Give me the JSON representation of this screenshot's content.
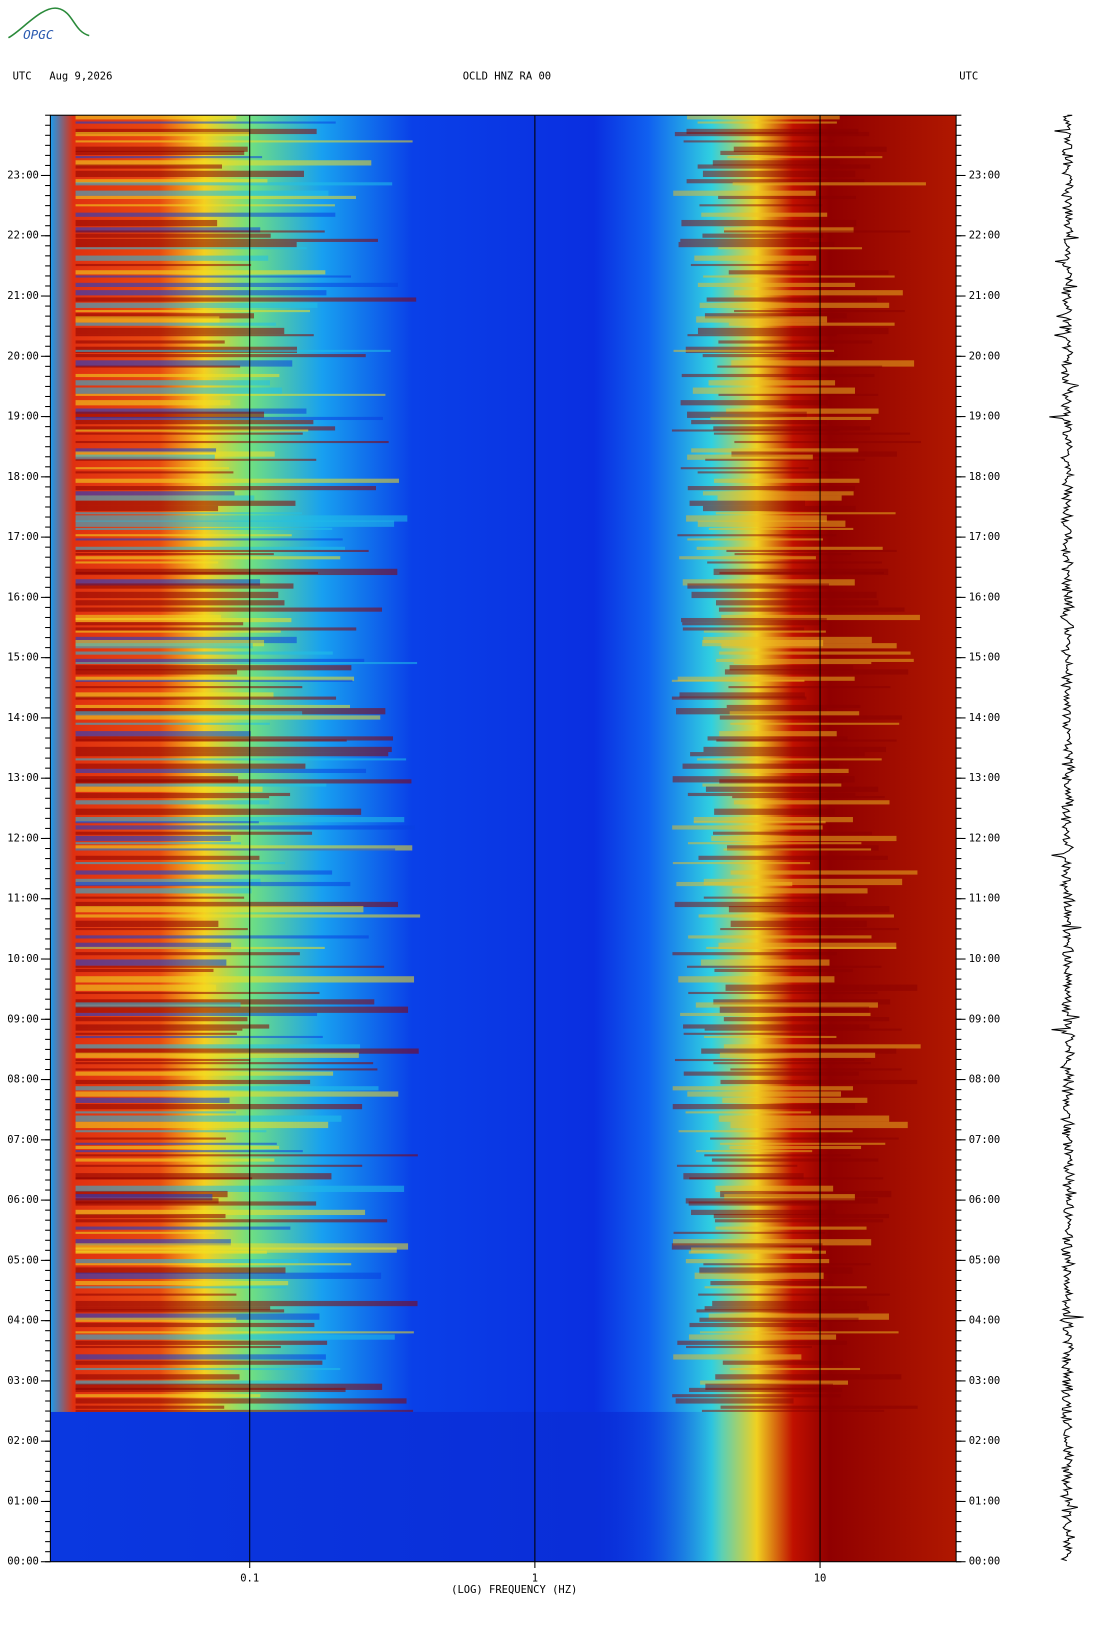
{
  "chart_data": {
    "type": "spectrogram",
    "logo": "OPGC",
    "header_left": [
      "UTC",
      "Aug 9,2026"
    ],
    "title": "OCLD HNZ RA 00",
    "header_right": "UTC",
    "x_label": "(LOG) FREQUENCY (HZ)",
    "x_log": true,
    "xlim": [
      0.02,
      30
    ],
    "xticks": [
      0.1,
      1,
      10
    ],
    "ylim": [
      0,
      24
    ],
    "yticks": [
      {
        "value": 0,
        "label": "00:00"
      },
      {
        "value": 1,
        "label": "01:00"
      },
      {
        "value": 2,
        "label": "02:00"
      },
      {
        "value": 3,
        "label": "03:00"
      },
      {
        "value": 4,
        "label": "04:00"
      },
      {
        "value": 5,
        "label": "05:00"
      },
      {
        "value": 6,
        "label": "06:00"
      },
      {
        "value": 7,
        "label": "07:00"
      },
      {
        "value": 8,
        "label": "08:00"
      },
      {
        "value": 9,
        "label": "09:00"
      },
      {
        "value": 10,
        "label": "10:00"
      },
      {
        "value": 11,
        "label": "11:00"
      },
      {
        "value": 12,
        "label": "12:00"
      },
      {
        "value": 13,
        "label": "13:00"
      },
      {
        "value": 14,
        "label": "14:00"
      },
      {
        "value": 15,
        "label": "15:00"
      },
      {
        "value": 16,
        "label": "16:00"
      },
      {
        "value": 17,
        "label": "17:00"
      },
      {
        "value": 18,
        "label": "18:00"
      },
      {
        "value": 19,
        "label": "19:00"
      },
      {
        "value": 20,
        "label": "20:00"
      },
      {
        "value": 21,
        "label": "21:00"
      },
      {
        "value": 22,
        "label": "22:00"
      },
      {
        "value": 23,
        "label": "23:00"
      }
    ],
    "grid": true
  }
}
